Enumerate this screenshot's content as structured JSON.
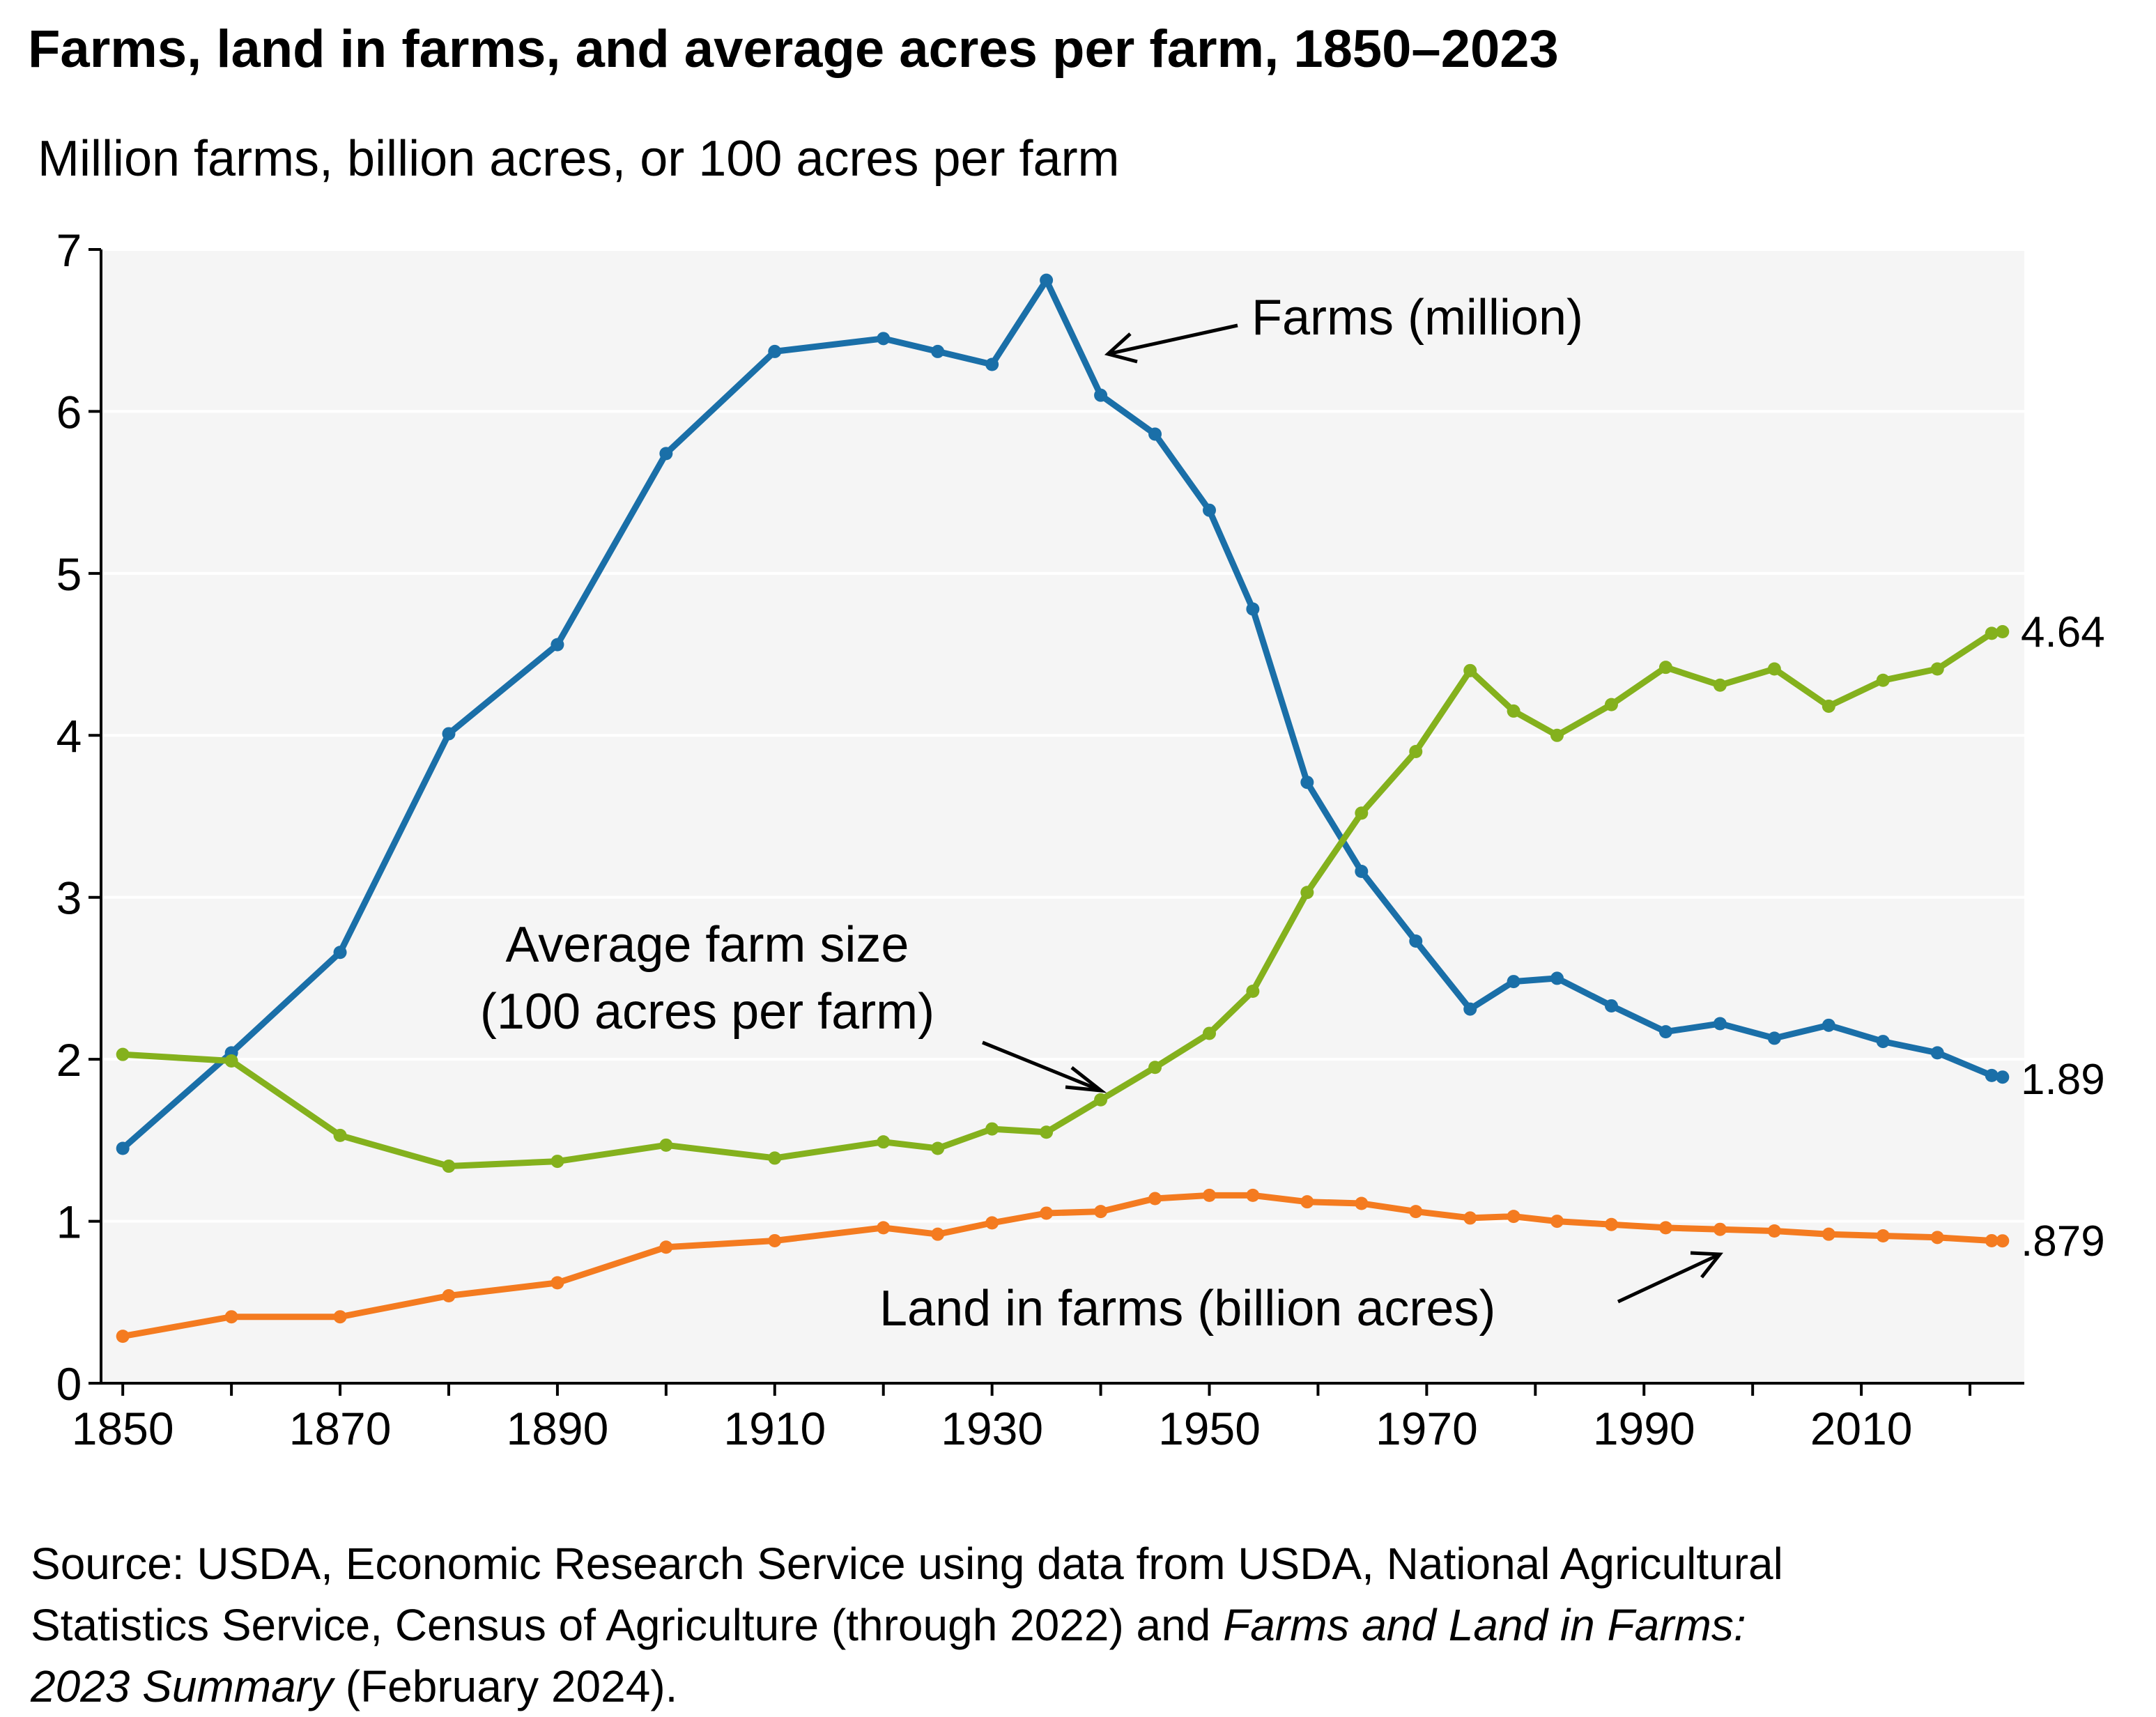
{
  "title": "Farms, land in farms, and average acres per farm, 1850–2023",
  "subtitle": "Million farms, billion acres, or 100 acres per farm",
  "chart_data": {
    "type": "line",
    "title": "Farms, land in farms, and average acres per farm, 1850–2023",
    "ylabel": "Million farms, billion acres, or 100 acres per farm",
    "xlabel": "",
    "xlim": [
      1848,
      2025
    ],
    "ylim": [
      0,
      7
    ],
    "yticks": [
      0,
      1,
      2,
      3,
      4,
      5,
      6,
      7
    ],
    "xticks": [
      1850,
      1870,
      1890,
      1910,
      1930,
      1950,
      1970,
      1990,
      2010
    ],
    "grid": "horizontal",
    "series": [
      {
        "name": "Farms (million)",
        "color": "#1a6fa8",
        "x": [
          1850,
          1860,
          1870,
          1880,
          1890,
          1900,
          1910,
          1920,
          1925,
          1930,
          1935,
          1940,
          1945,
          1950,
          1954,
          1959,
          1964,
          1969,
          1974,
          1978,
          1982,
          1987,
          1992,
          1997,
          2002,
          2007,
          2012,
          2017,
          2022,
          2023
        ],
        "values": [
          1.45,
          2.04,
          2.66,
          4.01,
          4.56,
          5.74,
          6.37,
          6.45,
          6.37,
          6.29,
          6.81,
          6.1,
          5.86,
          5.39,
          4.78,
          3.71,
          3.16,
          2.73,
          2.31,
          2.48,
          2.5,
          2.33,
          2.17,
          2.22,
          2.13,
          2.21,
          2.11,
          2.04,
          1.9,
          1.89
        ]
      },
      {
        "name": "Average farm size (100 acres per farm)",
        "color": "#84b11d",
        "x": [
          1850,
          1860,
          1870,
          1880,
          1890,
          1900,
          1910,
          1920,
          1925,
          1930,
          1935,
          1940,
          1945,
          1950,
          1954,
          1959,
          1964,
          1969,
          1974,
          1978,
          1982,
          1987,
          1992,
          1997,
          2002,
          2007,
          2012,
          2017,
          2022,
          2023
        ],
        "values": [
          2.03,
          1.99,
          1.53,
          1.34,
          1.37,
          1.47,
          1.39,
          1.49,
          1.45,
          1.57,
          1.55,
          1.75,
          1.95,
          2.16,
          2.42,
          3.03,
          3.52,
          3.9,
          4.4,
          4.15,
          4.0,
          4.19,
          4.42,
          4.31,
          4.41,
          4.18,
          4.34,
          4.41,
          4.63,
          4.64
        ]
      },
      {
        "name": "Land in farms (billion acres)",
        "color": "#f47b20",
        "x": [
          1850,
          1860,
          1870,
          1880,
          1890,
          1900,
          1910,
          1920,
          1925,
          1930,
          1935,
          1940,
          1945,
          1950,
          1954,
          1959,
          1964,
          1969,
          1974,
          1978,
          1982,
          1987,
          1992,
          1997,
          2002,
          2007,
          2012,
          2017,
          2022,
          2023
        ],
        "values": [
          0.29,
          0.41,
          0.41,
          0.54,
          0.62,
          0.84,
          0.88,
          0.96,
          0.92,
          0.99,
          1.05,
          1.06,
          1.14,
          1.16,
          1.16,
          1.12,
          1.11,
          1.06,
          1.02,
          1.03,
          1.0,
          0.98,
          0.96,
          0.95,
          0.94,
          0.92,
          0.91,
          0.9,
          0.88,
          0.879
        ]
      }
    ],
    "annotations": {
      "farms": "Farms (million)",
      "avg_line1": "Average farm size",
      "avg_line2": "(100 acres per farm)",
      "land": "Land in farms (billion acres)"
    },
    "end_labels": [
      "1.89",
      "4.64",
      ".879"
    ]
  },
  "source": {
    "line1": "Source: USDA, Economic Research Service using data from USDA, National Agricultural",
    "line2_plain": "Statistics Service, Census of Agriculture (through 2022) and ",
    "line2_italic": "Farms and Land in Farms:",
    "line3_italic": "2023 Summary",
    "line3_plain": " (February 2024)."
  }
}
